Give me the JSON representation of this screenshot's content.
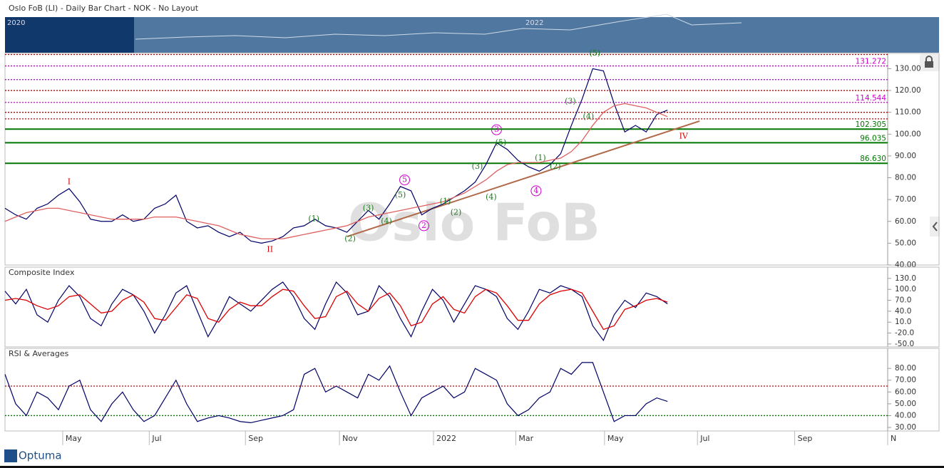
{
  "chart_data": [
    {
      "type": "line",
      "title": "Oslo FoB (LI) - Daily Bar Chart - NOK - No Layout",
      "watermark": "Oslo FoB",
      "navigator": [
        "2020",
        "2022"
      ],
      "logo": "Optuma",
      "xlim": [
        0,
        82.6
      ],
      "xticks": [
        {
          "value": 5.4,
          "label": "May"
        },
        {
          "value": 13.5,
          "label": "Jul"
        },
        {
          "value": 22.5,
          "label": "Sep"
        },
        {
          "value": 31.3,
          "label": "Nov"
        },
        {
          "value": 40.1,
          "label": "2022"
        },
        {
          "value": 47.8,
          "label": "Mar"
        },
        {
          "value": 56.1,
          "label": "May"
        },
        {
          "value": 64.8,
          "label": "Jul"
        },
        {
          "value": 73.9,
          "label": "Sep"
        },
        {
          "value": 82.6,
          "label": "N"
        }
      ],
      "x": [
        0,
        1,
        2,
        3,
        4,
        5,
        6,
        7,
        8,
        9,
        10,
        11,
        12,
        13,
        14,
        15,
        16,
        17,
        18,
        19,
        20,
        21,
        22,
        23,
        24,
        25,
        26,
        27,
        28,
        29,
        30,
        31,
        32,
        33,
        34,
        35,
        36,
        37,
        38,
        39,
        40,
        41,
        42,
        43,
        44,
        45,
        46,
        47,
        48,
        49,
        50,
        51,
        52,
        53,
        54,
        55,
        56,
        57,
        58,
        59,
        60,
        61,
        62
      ],
      "ylim": [
        40,
        137
      ],
      "yticks": [
        {
          "value": 40,
          "label": "40.00"
        },
        {
          "value": 50,
          "label": "50.00"
        },
        {
          "value": 60,
          "label": "60.00"
        },
        {
          "value": 70,
          "label": "70.00"
        },
        {
          "value": 80,
          "label": "80.00"
        },
        {
          "value": 90,
          "label": "90.00"
        },
        {
          "value": 100,
          "label": "100.00"
        },
        {
          "value": 110,
          "label": "110.00"
        },
        {
          "value": 120,
          "label": "120.00"
        },
        {
          "value": 130,
          "label": "130.00"
        }
      ],
      "series": [
        {
          "color": "#000066",
          "values": [
            66,
            63,
            61,
            66,
            68,
            72,
            75,
            69,
            61,
            60,
            60,
            63,
            60,
            61,
            66,
            68,
            72,
            60,
            57,
            58,
            55,
            53,
            55,
            51,
            50,
            51,
            53,
            57,
            58,
            61,
            58,
            57,
            55,
            60,
            65,
            61,
            68,
            76,
            74,
            63,
            66,
            68,
            71,
            74,
            78,
            86,
            96,
            93,
            88,
            85,
            83,
            86,
            91,
            104,
            116,
            130,
            129,
            114,
            101,
            104,
            101,
            109,
            111
          ]
        },
        {
          "color": "#e06060",
          "values": [
            60,
            62,
            64,
            65,
            66,
            66,
            65,
            64,
            63,
            62,
            61,
            61,
            61,
            61,
            62,
            62,
            62,
            61,
            60,
            59,
            58,
            56,
            54,
            53,
            52,
            52,
            52,
            53,
            54,
            55,
            56,
            57,
            58,
            60,
            62,
            63,
            64,
            65,
            66,
            67,
            68,
            69,
            71,
            73,
            76,
            79,
            83,
            86,
            87,
            87,
            87,
            88,
            89,
            92,
            97,
            104,
            110,
            113,
            114,
            113,
            112,
            110,
            108
          ]
        }
      ],
      "trendline": {
        "color": "#b06a4a",
        "x": [
          32,
          65
        ],
        "y": [
          53,
          106
        ]
      },
      "levels": [
        {
          "value": 136.5,
          "color": "#c00000",
          "style": "dotted"
        },
        {
          "value": 131.272,
          "color": "#cc00cc",
          "style": "dotted"
        },
        {
          "value": 125,
          "color": "#9900cc",
          "style": "dotted"
        },
        {
          "value": 120,
          "color": "#c00000",
          "style": "dotted"
        },
        {
          "value": 114.544,
          "color": "#cc00cc",
          "style": "dotted"
        },
        {
          "value": 110,
          "color": "#c00000",
          "style": "dotted"
        },
        {
          "value": 107,
          "color": "#c00000",
          "style": "dotted"
        },
        {
          "value": 102.305,
          "color": "#007700",
          "style": "solid"
        },
        {
          "value": 96.035,
          "color": "#007700",
          "style": "solid"
        },
        {
          "value": {
            "value": 86.63,
            "label": "86.630"
          },
          "color": "#007700",
          "style": "solid"
        }
      ],
      "labeled_levels": [
        1,
        4,
        7,
        8,
        9
      ],
      "annotations": [
        {
          "text": "I",
          "x": 6,
          "y": 78,
          "color": "#cc0000"
        },
        {
          "text": "II",
          "x": 24.8,
          "y": 47,
          "color": "#cc0000"
        },
        {
          "text": "IV",
          "x": 63.5,
          "y": 99,
          "color": "#cc0000"
        },
        {
          "text": "(1)",
          "x": 28.9,
          "y": 61,
          "color": "#1a7a1a"
        },
        {
          "text": "(2)",
          "x": 32.3,
          "y": 52,
          "color": "#1a7a1a"
        },
        {
          "text": "(3)",
          "x": 34,
          "y": 66,
          "color": "#1a7a1a"
        },
        {
          "text": "(4)",
          "x": 35.7,
          "y": 60,
          "color": "#1a7a1a"
        },
        {
          "text": "(5)",
          "x": 37,
          "y": 72,
          "color": "#1a7a1a"
        },
        {
          "text": "(1)",
          "x": 41.2,
          "y": 69,
          "color": "#1a7a1a"
        },
        {
          "text": "(2)",
          "x": 42.2,
          "y": 64,
          "color": "#1a7a1a"
        },
        {
          "text": "(3)",
          "x": 44.2,
          "y": 85,
          "color": "#1a7a1a"
        },
        {
          "text": "(4)",
          "x": 45.5,
          "y": 71,
          "color": "#1a7a1a"
        },
        {
          "text": "(5)",
          "x": 46.4,
          "y": 96,
          "color": "#1a7a1a"
        },
        {
          "text": "(1)",
          "x": 50.1,
          "y": 89,
          "color": "#1a7a1a"
        },
        {
          "text": "(2)",
          "x": 51.5,
          "y": 85,
          "color": "#1a7a1a"
        },
        {
          "text": "(3)",
          "x": 52.9,
          "y": 115,
          "color": "#1a7a1a"
        },
        {
          "text": "(4)",
          "x": 54.6,
          "y": 108,
          "color": "#1a7a1a"
        },
        {
          "text": "(5)",
          "x": 55.2,
          "y": 137,
          "color": "#1a7a1a"
        },
        {
          "text": "5",
          "x": 37.4,
          "y": 79,
          "color": "#cc00cc",
          "circled": true
        },
        {
          "text": "2",
          "x": 39.2,
          "y": 58,
          "color": "#cc00cc",
          "circled": true
        },
        {
          "text": "3",
          "x": 46,
          "y": 102,
          "color": "#cc00cc",
          "circled": true
        },
        {
          "text": "4",
          "x": 49.7,
          "y": 74,
          "color": "#cc00cc",
          "circled": true
        }
      ]
    },
    {
      "type": "line",
      "title": "Composite Index",
      "ylim": [
        -58,
        161
      ],
      "yticks": [
        {
          "value": -50,
          "label": "-50.0"
        },
        {
          "value": -20,
          "label": "-20.0"
        },
        {
          "value": 10,
          "label": "10.0"
        },
        {
          "value": 40,
          "label": "40.0"
        },
        {
          "value": 70,
          "label": "70.0"
        },
        {
          "value": 100,
          "label": "100.0"
        },
        {
          "value": 130,
          "label": "130.0"
        }
      ],
      "series": [
        {
          "color": "#000066",
          "values": [
            95,
            60,
            100,
            30,
            10,
            70,
            110,
            80,
            20,
            0,
            60,
            100,
            85,
            40,
            -20,
            30,
            90,
            110,
            40,
            -30,
            20,
            80,
            60,
            40,
            70,
            100,
            120,
            80,
            20,
            -10,
            60,
            120,
            90,
            30,
            40,
            110,
            80,
            20,
            -30,
            40,
            100,
            70,
            10,
            60,
            110,
            100,
            80,
            20,
            -10,
            40,
            100,
            90,
            110,
            100,
            80,
            0,
            -40,
            30,
            70,
            50,
            90,
            80,
            60
          ]
        },
        {
          "color": "#dd0000",
          "values": [
            70,
            75,
            70,
            55,
            45,
            55,
            80,
            85,
            60,
            35,
            40,
            70,
            85,
            65,
            20,
            15,
            50,
            85,
            75,
            20,
            10,
            45,
            65,
            55,
            55,
            80,
            100,
            95,
            55,
            20,
            25,
            80,
            95,
            60,
            40,
            75,
            90,
            55,
            0,
            10,
            60,
            80,
            45,
            35,
            80,
            100,
            90,
            55,
            15,
            15,
            60,
            85,
            95,
            100,
            90,
            40,
            -10,
            0,
            45,
            55,
            70,
            75,
            65
          ]
        }
      ],
      "levels": []
    },
    {
      "type": "line",
      "title": "RSI & Averages",
      "ylim": [
        27,
        97
      ],
      "yticks": [
        {
          "value": 30,
          "label": "30.00"
        },
        {
          "value": 40,
          "label": "40.00"
        },
        {
          "value": 50,
          "label": "50.00"
        },
        {
          "value": 60,
          "label": "60.00"
        },
        {
          "value": 70,
          "label": "70.00"
        },
        {
          "value": 80,
          "label": "80.00"
        }
      ],
      "series": [
        {
          "color": "#000066",
          "values": [
            75,
            50,
            40,
            60,
            55,
            45,
            65,
            70,
            45,
            35,
            50,
            60,
            45,
            35,
            40,
            55,
            70,
            50,
            35,
            38,
            40,
            38,
            35,
            34,
            36,
            38,
            40,
            45,
            75,
            80,
            60,
            65,
            60,
            55,
            75,
            70,
            82,
            60,
            40,
            55,
            60,
            65,
            55,
            60,
            80,
            75,
            70,
            50,
            40,
            45,
            55,
            60,
            80,
            75,
            85,
            85,
            60,
            35,
            40,
            40,
            50,
            55,
            52
          ]
        }
      ],
      "levels": [
        {
          "value": 65,
          "color": "#c00000",
          "style": "dotted"
        },
        {
          "value": 40,
          "color": "#007700",
          "style": "dotted"
        }
      ]
    }
  ]
}
